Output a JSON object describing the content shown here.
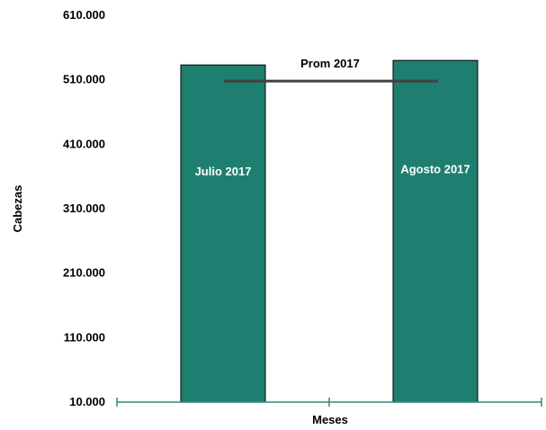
{
  "chart_data": {
    "type": "bar",
    "categories": [
      "Julio 2017",
      "Agosto 2017"
    ],
    "values": [
      533000,
      540000
    ],
    "average": {
      "label": "Prom 2017",
      "value": 508000
    },
    "xlabel": "Meses",
    "ylabel": "Cabezas",
    "ylim": [
      10000,
      610000
    ],
    "yticks": [
      10000,
      110000,
      210000,
      310000,
      410000,
      510000,
      610000
    ],
    "ytick_labels": [
      "10.000",
      "110.000",
      "210.000",
      "310.000",
      "410.000",
      "510.000",
      "610.000"
    ],
    "grid": false,
    "legend": "none",
    "colors": {
      "bar": "#1e7f70",
      "bar_stroke": "#000000",
      "avg_line": "#404040",
      "axis": "#2e8b7a"
    }
  }
}
